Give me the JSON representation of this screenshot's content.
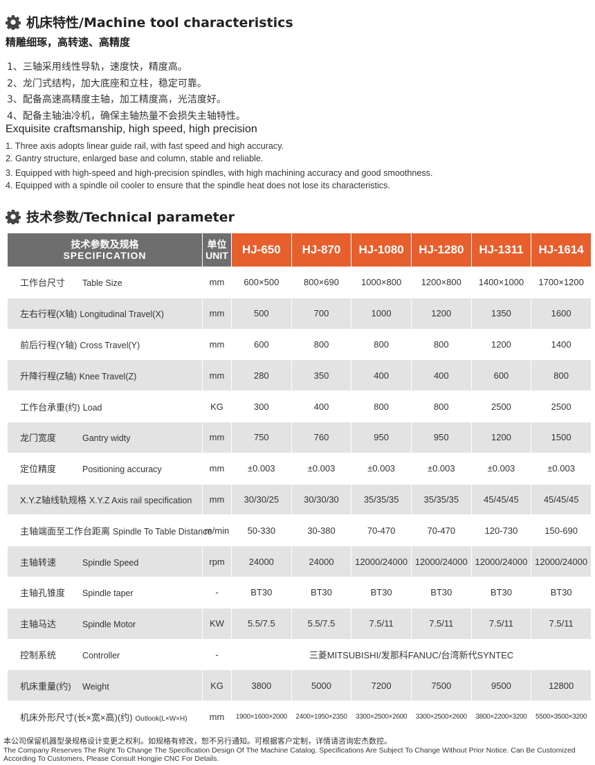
{
  "section1": {
    "title": "机床特性/Machine tool characteristics",
    "icon": "gear-icon",
    "subtitle": "精雕细琢，高转速、高精度",
    "cn_items": [
      "1、三轴采用线性导轨，速度快，精度高。",
      "2、龙门式结构，加大底座和立柱，稳定可靠。",
      "3、配备高速高精度主轴，加工精度高，光洁度好。",
      "4、配备主轴油冷机，确保主轴热量不会损失主轴特性。"
    ],
    "en_title": "Exquisite craftsmanship, high speed, high precision",
    "en_items": [
      "1. Three axis adopts linear guide rail, with fast speed and high accuracy.",
      "2. Gantry structure, enlarged base and column, stable and reliable.",
      "3. Equipped with high-speed and high-precision spindles, with high machining accuracy and good smoothness.",
      "4. Equipped with a spindle oil cooler to ensure that the spindle heat does not lose its characteristics."
    ]
  },
  "section2": {
    "title": "技术参数/Technical parameter",
    "icon": "gear-icon"
  },
  "table": {
    "spec_cn": "技术参数及规格",
    "spec_en": "SPECIFICATION",
    "unit_cn": "单位",
    "unit_en": "UNIT",
    "models": [
      "HJ-650",
      "HJ-870",
      "HJ-1080",
      "HJ-1280",
      "HJ-1311",
      "HJ-1614"
    ],
    "rows": [
      {
        "cn": "工作台尺寸",
        "en": "Table Size",
        "unit": "mm",
        "values": [
          "600×500",
          "800×690",
          "1000×800",
          "1200×800",
          "1400×1000",
          "1700×1200"
        ]
      },
      {
        "cn": "左右行程(X轴)",
        "en": "Longitudinal Travel(X)",
        "unit": "mm",
        "values": [
          "500",
          "700",
          "1000",
          "1200",
          "1350",
          "1600"
        ]
      },
      {
        "cn": "前后行程(Y轴)",
        "en": "Cross Travel(Y)",
        "unit": "mm",
        "values": [
          "600",
          "800",
          "800",
          "800",
          "1200",
          "1400"
        ]
      },
      {
        "cn": "升降行程(Z轴)",
        "en": "Knee Travel(Z)",
        "unit": "mm",
        "values": [
          "280",
          "350",
          "400",
          "400",
          "600",
          "800"
        ]
      },
      {
        "cn": "工作台承重(约)",
        "en": "Load",
        "unit": "KG",
        "values": [
          "300",
          "400",
          "800",
          "800",
          "2500",
          "2500"
        ]
      },
      {
        "cn": "龙门宽度",
        "en": "Gantry widty",
        "unit": "mm",
        "values": [
          "750",
          "760",
          "950",
          "950",
          "1200",
          "1500"
        ]
      },
      {
        "cn": "定位精度",
        "en": "Positioning accuracy",
        "unit": "mm",
        "values": [
          "±0.003",
          "±0.003",
          "±0.003",
          "±0.003",
          "±0.003",
          "±0.003"
        ]
      },
      {
        "cn": "X.Y.Z轴线轨规格",
        "en": "X.Y.Z Axis rail specification",
        "unit": "mm",
        "values": [
          "30/30/25",
          "30/30/30",
          "35/35/35",
          "35/35/35",
          "45/45/45",
          "45/45/45"
        ]
      },
      {
        "cn": "主轴端面至工作台距离",
        "en": "Spindle To Table Distance",
        "unit": "m/min",
        "values": [
          "50-330",
          "30-380",
          "70-470",
          "70-470",
          "120-730",
          "150-690"
        ]
      },
      {
        "cn": "主轴转速",
        "en": "Spindle Speed",
        "unit": "rpm",
        "values": [
          "24000",
          "24000",
          "12000/24000",
          "12000/24000",
          "12000/24000",
          "12000/24000"
        ]
      },
      {
        "cn": "主轴孔锥度",
        "en": "Spindle taper",
        "unit": "-",
        "values": [
          "BT30",
          "BT30",
          "BT30",
          "BT30",
          "BT30",
          "BT30"
        ]
      },
      {
        "cn": "主轴马达",
        "en": "Spindle Motor",
        "unit": "KW",
        "values": [
          "5.5/7.5",
          "5.5/7.5",
          "7.5/11",
          "7.5/11",
          "7.5/11",
          "7.5/11"
        ]
      },
      {
        "cn": "控制系统",
        "en": "Controller",
        "unit": "-",
        "merged": "三菱MITSUBISHI/发那科FANUC/台湾新代SYNTEC"
      },
      {
        "cn": "机床重量(约)",
        "en": "Weight",
        "unit": "KG",
        "values": [
          "3800",
          "5000",
          "7200",
          "7500",
          "9500",
          "12800"
        ]
      },
      {
        "cn": "机床外形尺寸(长×宽×高)(约)",
        "en": "Outlook(L×W×H)",
        "unit": "mm",
        "values": [
          "1900×1600×2000",
          "2400×1950×2350",
          "3300×2500×2600",
          "3300×2500×2600",
          "3800×2200×3200",
          "5500×3500×3200"
        ]
      }
    ]
  },
  "footer": {
    "cn": "本公司保留机器型录规格设计变更之权利。如规格有修改，恕不另行通知。可根据客户定制，详情请咨询宏杰数控。",
    "en": "The Company Reserves The Right To Change The Specification Design Of The Machine Catalog. Specifications Are Subject To Change Without Prior Notice. Can Be Customized According To Customers, Please Consult Hongjie CNC For Details."
  },
  "colors": {
    "header_grey": "#6e6e6e",
    "accent_orange": "#e65f2d",
    "row_alt": "#e3e3e3"
  }
}
